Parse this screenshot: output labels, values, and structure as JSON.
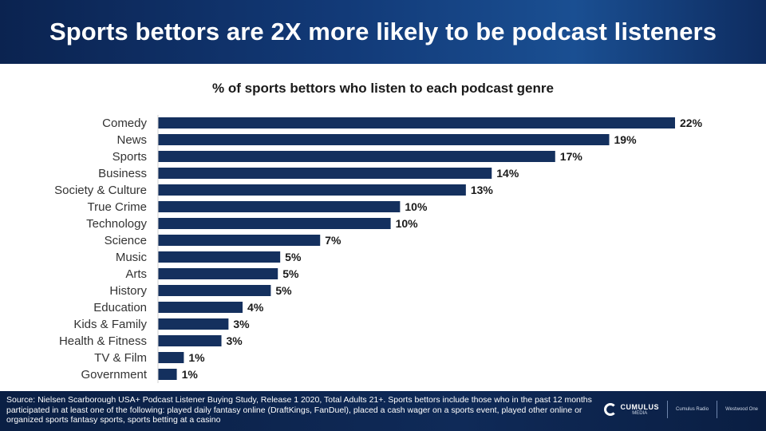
{
  "header": {
    "title": "Sports bettors are 2X more likely to be podcast listeners"
  },
  "chart_data": {
    "type": "bar",
    "orientation": "horizontal",
    "title": "% of sports bettors who listen to each podcast genre",
    "categories": [
      "Comedy",
      "News",
      "Sports",
      "Business",
      "Society & Culture",
      "True Crime",
      "Technology",
      "Science",
      "Music",
      "Arts",
      "History",
      "Education",
      "Kids & Family",
      "Health & Fitness",
      "TV & Film",
      "Government"
    ],
    "values": [
      22,
      19,
      17,
      14,
      13,
      10,
      10,
      7,
      5,
      5,
      5,
      4,
      3,
      3,
      1,
      1
    ],
    "bar_lengths_est": [
      22.0,
      19.2,
      16.9,
      14.2,
      13.1,
      10.3,
      9.9,
      6.9,
      5.2,
      5.1,
      4.8,
      3.6,
      3.0,
      2.7,
      1.1,
      0.8
    ],
    "value_labels": [
      "22%",
      "19%",
      "17%",
      "14%",
      "13%",
      "10%",
      "10%",
      "7%",
      "5%",
      "5%",
      "5%",
      "4%",
      "3%",
      "3%",
      "1%",
      "1%"
    ],
    "xlim": [
      0,
      22
    ],
    "grid": false,
    "legend": "none",
    "bar_color": "#14305e"
  },
  "footer": {
    "source": "Source: Nielsen Scarborough USA+ Podcast Listener Buying Study, Release 1 2020, Total Adults 21+. Sports bettors include those who in the past 12 months participated in at least one of the following: played daily fantasy online (DraftKings, FanDuel), placed a cash wager on a sports event, played other online or organized sports fantasy sports, sports betting at a casino",
    "logo_cumulus": "CUMULUS",
    "logo_cumulus_sub": "MEDIA",
    "logo_2": "Cumulus Radio",
    "logo_3": "Westwood One"
  }
}
